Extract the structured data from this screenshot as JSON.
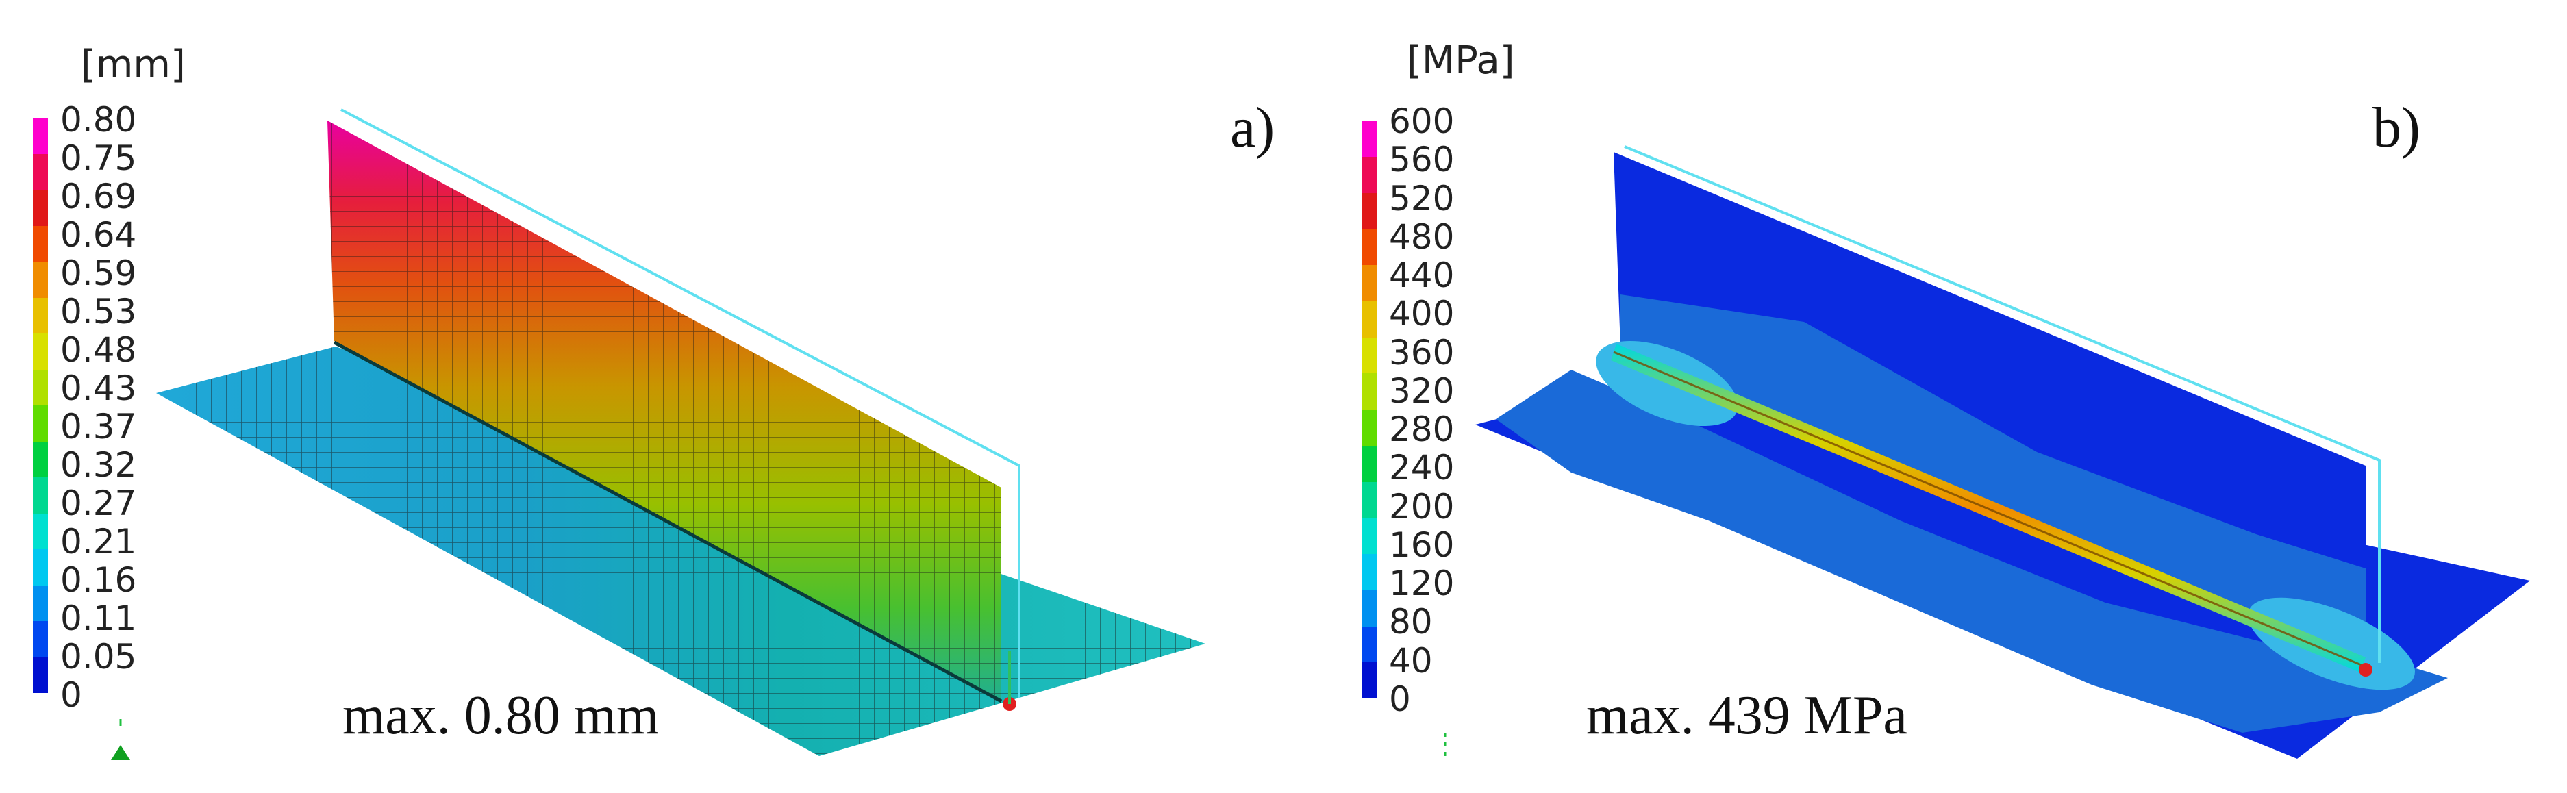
{
  "panels": [
    {
      "id": "a",
      "label": "a)",
      "unit": "[mm]",
      "max_text": "max. 0.80 mm",
      "legend_ticks": [
        "0.80",
        "0.75",
        "0.69",
        "0.64",
        "0.59",
        "0.53",
        "0.48",
        "0.43",
        "0.37",
        "0.32",
        "0.27",
        "0.21",
        "0.16",
        "0.11",
        "0.05",
        "0"
      ],
      "legend_colors": [
        "#ff00cc",
        "#ee0a55",
        "#e01818",
        "#f04a00",
        "#f08c00",
        "#e8c000",
        "#d8e000",
        "#b0e000",
        "#60dc00",
        "#00d040",
        "#00d890",
        "#00e0d0",
        "#00c8f0",
        "#0090f0",
        "#0048f0",
        "#0010d0"
      ]
    },
    {
      "id": "b",
      "label": "b)",
      "unit": "[MPa]",
      "max_text": "max. 439 MPa",
      "legend_ticks": [
        "600",
        "560",
        "520",
        "480",
        "440",
        "400",
        "360",
        "320",
        "280",
        "240",
        "200",
        "160",
        "120",
        "80",
        "40",
        "0"
      ],
      "legend_colors": [
        "#ff00cc",
        "#ee0a55",
        "#e01818",
        "#f04a00",
        "#f08c00",
        "#e8c000",
        "#d8e000",
        "#b0e000",
        "#60dc00",
        "#00d040",
        "#00d890",
        "#00e0d0",
        "#00c8f0",
        "#0090f0",
        "#0048f0",
        "#0010d0"
      ]
    }
  ]
}
